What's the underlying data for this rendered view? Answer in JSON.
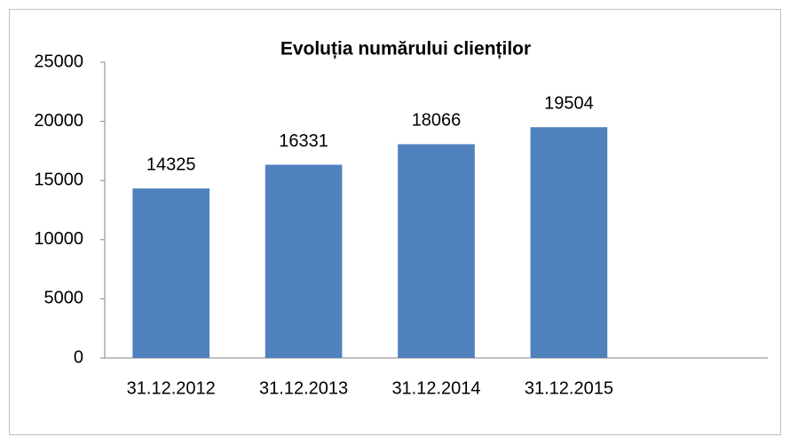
{
  "chart_data": {
    "type": "bar",
    "title": "Evoluția numărului clienților",
    "categories": [
      "31.12.2012",
      "31.12.2013",
      "31.12.2014",
      "31.12.2015",
      null
    ],
    "values": [
      14325,
      16331,
      18066,
      19504,
      null
    ],
    "color": "#4f81bd",
    "ylim": [
      0,
      25000
    ],
    "yticks": [
      0,
      5000,
      10000,
      15000,
      20000,
      25000
    ],
    "grid": false
  }
}
